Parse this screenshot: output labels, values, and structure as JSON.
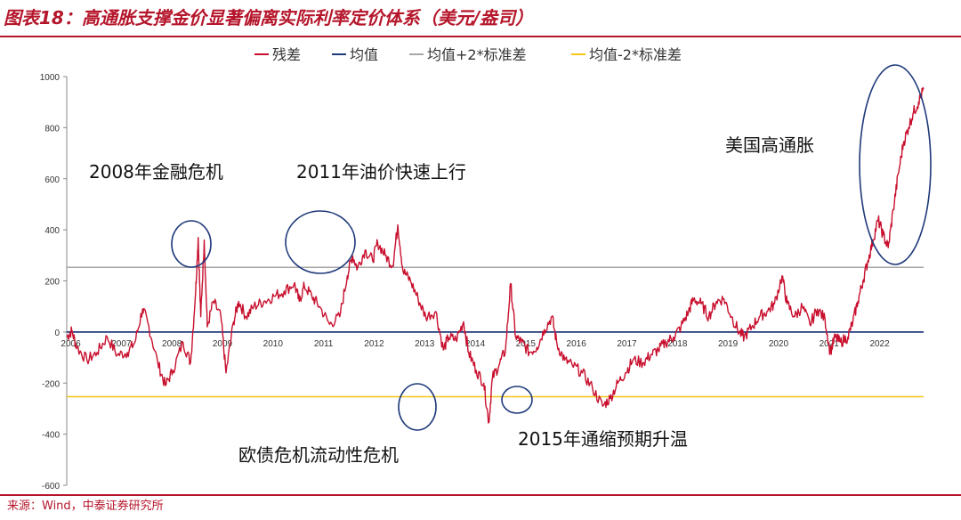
{
  "header": {
    "title": "图表18：高通胀支撑金价显著偏离实际利率定价体系（美元/盎司）"
  },
  "footer": {
    "source": "来源：Wind，中泰证券研究所"
  },
  "colors": {
    "title_red": "#b5162b",
    "residual": "#c8102e",
    "mean": "#1f3a7a",
    "plus2sd": "#a6a6a6",
    "minus2sd": "#f5c518",
    "circle": "#1f3a7a"
  },
  "chart_data": {
    "type": "line",
    "ylim": [
      -600,
      1000
    ],
    "yticks": [
      -600,
      -400,
      -200,
      0,
      200,
      400,
      600,
      800,
      1000
    ],
    "xlim": [
      2006.0,
      2022.95
    ],
    "xticks": [
      "2006",
      "2007",
      "2008",
      "2009",
      "2010",
      "2011",
      "2012",
      "2013",
      "2014",
      "2015",
      "2016",
      "2017",
      "2018",
      "2019",
      "2020",
      "2021",
      "2022"
    ],
    "legend_position": "top",
    "grid": false,
    "series": [
      {
        "name": "残差",
        "kind": "residual"
      },
      {
        "name": "均值",
        "kind": "mean",
        "value": 0
      },
      {
        "name": "均值+2*标准差",
        "kind": "plus2sd",
        "value": 253
      },
      {
        "name": "均值-2*标准差",
        "kind": "minus2sd",
        "value": -253
      }
    ],
    "residual_points": [
      [
        2006.0,
        -20
      ],
      [
        2006.1,
        5
      ],
      [
        2006.2,
        -60
      ],
      [
        2006.4,
        -110
      ],
      [
        2006.6,
        -80
      ],
      [
        2006.8,
        -20
      ],
      [
        2007.0,
        -90
      ],
      [
        2007.2,
        -80
      ],
      [
        2007.35,
        -40
      ],
      [
        2007.5,
        90
      ],
      [
        2007.6,
        40
      ],
      [
        2007.8,
        -120
      ],
      [
        2007.95,
        -210
      ],
      [
        2008.1,
        -150
      ],
      [
        2008.3,
        -40
      ],
      [
        2008.45,
        -120
      ],
      [
        2008.55,
        160
      ],
      [
        2008.6,
        370
      ],
      [
        2008.65,
        60
      ],
      [
        2008.72,
        360
      ],
      [
        2008.78,
        20
      ],
      [
        2008.9,
        120
      ],
      [
        2009.05,
        60
      ],
      [
        2009.15,
        -160
      ],
      [
        2009.3,
        40
      ],
      [
        2009.4,
        120
      ],
      [
        2009.55,
        60
      ],
      [
        2009.7,
        100
      ],
      [
        2009.9,
        120
      ],
      [
        2010.1,
        140
      ],
      [
        2010.3,
        160
      ],
      [
        2010.5,
        190
      ],
      [
        2010.6,
        120
      ],
      [
        2010.7,
        180
      ],
      [
        2010.85,
        140
      ],
      [
        2011.0,
        100
      ],
      [
        2011.2,
        30
      ],
      [
        2011.4,
        60
      ],
      [
        2011.55,
        220
      ],
      [
        2011.65,
        300
      ],
      [
        2011.75,
        250
      ],
      [
        2011.9,
        320
      ],
      [
        2012.05,
        280
      ],
      [
        2012.15,
        350
      ],
      [
        2012.3,
        300
      ],
      [
        2012.45,
        260
      ],
      [
        2012.55,
        420
      ],
      [
        2012.65,
        240
      ],
      [
        2012.8,
        200
      ],
      [
        2012.95,
        130
      ],
      [
        2013.1,
        60
      ],
      [
        2013.3,
        80
      ],
      [
        2013.45,
        -70
      ],
      [
        2013.55,
        -20
      ],
      [
        2013.7,
        -30
      ],
      [
        2013.85,
        40
      ],
      [
        2013.95,
        -80
      ],
      [
        2014.1,
        -150
      ],
      [
        2014.25,
        -200
      ],
      [
        2014.35,
        -355
      ],
      [
        2014.42,
        -180
      ],
      [
        2014.55,
        -130
      ],
      [
        2014.68,
        -70
      ],
      [
        2014.78,
        190
      ],
      [
        2014.88,
        -20
      ],
      [
        2015.0,
        -40
      ],
      [
        2015.15,
        -80
      ],
      [
        2015.3,
        -60
      ],
      [
        2015.45,
        10
      ],
      [
        2015.6,
        60
      ],
      [
        2015.7,
        -50
      ],
      [
        2015.85,
        -110
      ],
      [
        2016.0,
        -130
      ],
      [
        2016.2,
        -160
      ],
      [
        2016.4,
        -220
      ],
      [
        2016.6,
        -290
      ],
      [
        2016.75,
        -260
      ],
      [
        2016.9,
        -200
      ],
      [
        2017.05,
        -160
      ],
      [
        2017.2,
        -110
      ],
      [
        2017.4,
        -120
      ],
      [
        2017.55,
        -90
      ],
      [
        2017.7,
        -70
      ],
      [
        2017.85,
        -40
      ],
      [
        2018.0,
        -20
      ],
      [
        2018.15,
        20
      ],
      [
        2018.3,
        80
      ],
      [
        2018.4,
        130
      ],
      [
        2018.55,
        110
      ],
      [
        2018.7,
        60
      ],
      [
        2018.85,
        120
      ],
      [
        2019.0,
        130
      ],
      [
        2019.15,
        60
      ],
      [
        2019.3,
        0
      ],
      [
        2019.4,
        -20
      ],
      [
        2019.55,
        20
      ],
      [
        2019.7,
        60
      ],
      [
        2019.85,
        80
      ],
      [
        2020.0,
        110
      ],
      [
        2020.15,
        220
      ],
      [
        2020.25,
        110
      ],
      [
        2020.4,
        60
      ],
      [
        2020.55,
        100
      ],
      [
        2020.7,
        30
      ],
      [
        2020.85,
        90
      ],
      [
        2021.0,
        50
      ],
      [
        2021.1,
        -80
      ],
      [
        2021.2,
        -20
      ],
      [
        2021.3,
        -40
      ],
      [
        2021.45,
        -20
      ],
      [
        2021.55,
        40
      ],
      [
        2021.65,
        120
      ],
      [
        2021.75,
        200
      ],
      [
        2021.85,
        280
      ],
      [
        2021.95,
        360
      ],
      [
        2022.05,
        440
      ],
      [
        2022.15,
        380
      ],
      [
        2022.25,
        330
      ],
      [
        2022.35,
        480
      ],
      [
        2022.45,
        620
      ],
      [
        2022.55,
        740
      ],
      [
        2022.65,
        800
      ],
      [
        2022.75,
        860
      ],
      [
        2022.85,
        900
      ],
      [
        2022.95,
        950
      ]
    ],
    "annotations": [
      {
        "text": "2008年金融危机"
      },
      {
        "text": "2011年油价快速上行"
      },
      {
        "text": "欧债危机流动性危机"
      },
      {
        "text": "2015年通缩预期升温"
      },
      {
        "text": "美国高通胀"
      }
    ]
  }
}
